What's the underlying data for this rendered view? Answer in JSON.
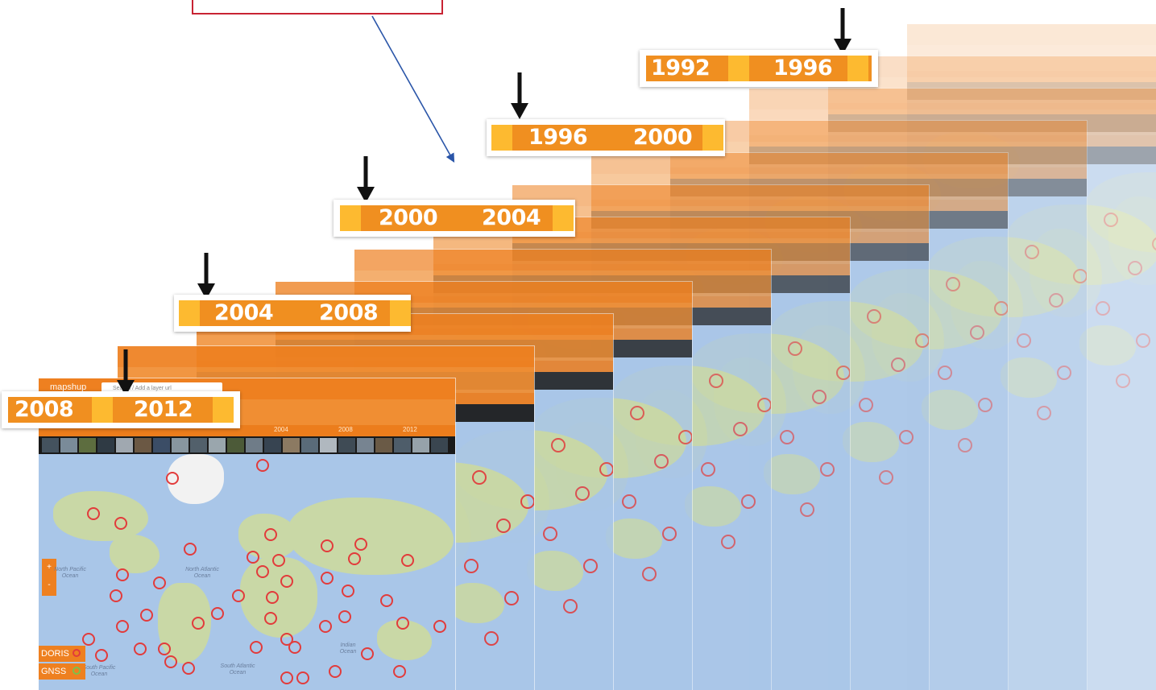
{
  "app": {
    "brand": "mapshup",
    "search_placeholder": "Search / Add a layer url"
  },
  "timeline_ticks": [
    "2004",
    "2008",
    "2012"
  ],
  "layers": [
    "DORIS",
    "GNSS"
  ],
  "colors": {
    "accent_orange": "#f08f20",
    "accent_yellow": "#fdba30",
    "station_red": "#e23b3b",
    "ocean_blue": "#a9c6e8",
    "callout_red": "#c82333",
    "arrow_blue": "#2a55a8"
  },
  "icons": {
    "zoom_in": "+",
    "zoom_out": "-",
    "arrow": "down-arrow-icon"
  },
  "ocean_labels": [
    {
      "key": "north_pacific",
      "text": "North Pacific Ocean"
    },
    {
      "key": "north_atlantic",
      "text": "North Atlantic Ocean"
    },
    {
      "key": "south_pacific",
      "text": "South Pacific Ocean"
    },
    {
      "key": "south_atlantic",
      "text": "South Atlantic Ocean"
    },
    {
      "key": "indian",
      "text": "Indian Ocean"
    }
  ],
  "periods": [
    {
      "start": "2008",
      "end": "2012"
    },
    {
      "start": "2004",
      "end": "2008"
    },
    {
      "start": "2000",
      "end": "2004"
    },
    {
      "start": "1996",
      "end": "2000"
    },
    {
      "start": "1992",
      "end": "1996"
    }
  ]
}
